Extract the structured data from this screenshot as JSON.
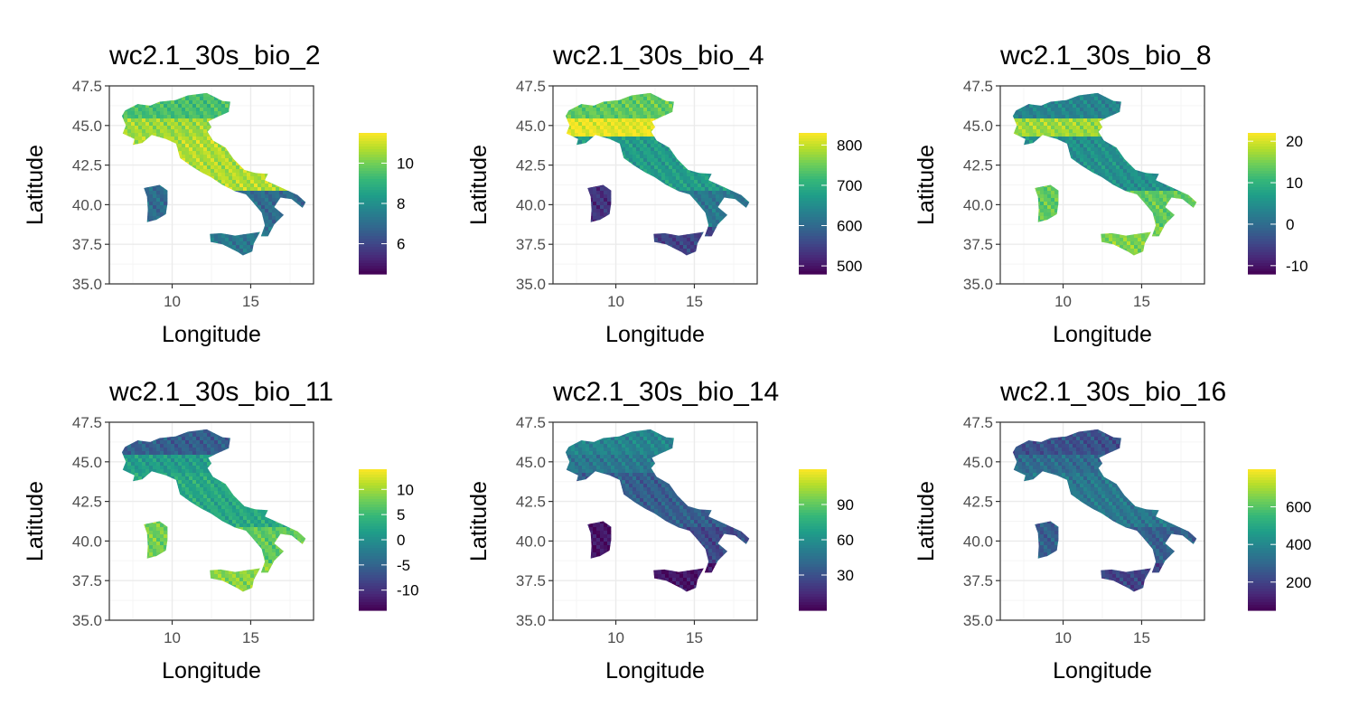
{
  "palette": {
    "viridis": [
      "#440154",
      "#482878",
      "#3e4989",
      "#31688e",
      "#26828e",
      "#1f9e89",
      "#35b779",
      "#6ece58",
      "#b5de2b",
      "#fde725"
    ],
    "grid_major": "#ebebeb",
    "grid_minor": "#f5f5f5",
    "panel_border": "#333333",
    "tick_text": "#4d4d4d"
  },
  "chart_data": [
    {
      "type": "heatmap",
      "title": "wc2.1_30s_bio_2",
      "xlabel": "Longitude",
      "ylabel": "Latitude",
      "xlim": [
        6.0,
        19.0
      ],
      "ylim": [
        35.0,
        47.5
      ],
      "x_ticks": [
        "10",
        "15"
      ],
      "y_ticks": [
        "35.0",
        "37.5",
        "40.0",
        "42.5",
        "45.0",
        "47.5"
      ],
      "grid": true,
      "legend": {
        "position": "right",
        "min": 4.5,
        "max": 11.5,
        "ticks": [
          "6",
          "8",
          "10"
        ],
        "tick_values": [
          6,
          8,
          10
        ]
      },
      "color_pattern": {
        "north": 0.7,
        "po_valley": 0.85,
        "apennines": 0.88,
        "south": 0.35,
        "sicily": 0.4,
        "sardinia": 0.35
      }
    },
    {
      "type": "heatmap",
      "title": "wc2.1_30s_bio_4",
      "xlabel": "Longitude",
      "ylabel": "Latitude",
      "xlim": [
        6.0,
        19.0
      ],
      "ylim": [
        35.0,
        47.5
      ],
      "x_ticks": [
        "10",
        "15"
      ],
      "y_ticks": [
        "35.0",
        "37.5",
        "40.0",
        "42.5",
        "45.0",
        "47.5"
      ],
      "grid": true,
      "legend": {
        "position": "right",
        "min": 480,
        "max": 830,
        "ticks": [
          "800",
          "700",
          "600",
          "500"
        ],
        "tick_values": [
          800,
          700,
          600,
          500
        ]
      },
      "color_pattern": {
        "north": 0.75,
        "po_valley": 0.97,
        "apennines": 0.55,
        "south": 0.4,
        "sicily": 0.2,
        "sardinia": 0.15
      }
    },
    {
      "type": "heatmap",
      "title": "wc2.1_30s_bio_8",
      "xlabel": "Longitude",
      "ylabel": "Latitude",
      "xlim": [
        6.0,
        19.0
      ],
      "ylim": [
        35.0,
        47.5
      ],
      "x_ticks": [
        "10",
        "15"
      ],
      "y_ticks": [
        "35.0",
        "37.5",
        "40.0",
        "42.5",
        "45.0",
        "47.5"
      ],
      "grid": true,
      "legend": {
        "position": "right",
        "min": -12,
        "max": 22,
        "ticks": [
          "20",
          "10",
          "0",
          "-10"
        ],
        "tick_values": [
          20,
          10,
          0,
          -10
        ]
      },
      "color_pattern": {
        "north": 0.45,
        "po_valley": 0.85,
        "apennines": 0.5,
        "south": 0.75,
        "sicily": 0.8,
        "sardinia": 0.75
      }
    },
    {
      "type": "heatmap",
      "title": "wc2.1_30s_bio_11",
      "xlabel": "Longitude",
      "ylabel": "Latitude",
      "xlim": [
        6.0,
        19.0
      ],
      "ylim": [
        35.0,
        47.5
      ],
      "x_ticks": [
        "10",
        "15"
      ],
      "y_ticks": [
        "35.0",
        "37.5",
        "40.0",
        "42.5",
        "45.0",
        "47.5"
      ],
      "grid": true,
      "legend": {
        "position": "right",
        "min": -14,
        "max": 14,
        "ticks": [
          "10",
          "5",
          "0",
          "-5",
          "-10"
        ],
        "tick_values": [
          10,
          5,
          0,
          -5,
          -10
        ]
      },
      "color_pattern": {
        "north": 0.3,
        "po_valley": 0.55,
        "apennines": 0.6,
        "south": 0.75,
        "sicily": 0.82,
        "sardinia": 0.78
      }
    },
    {
      "type": "heatmap",
      "title": "wc2.1_30s_bio_14",
      "xlabel": "Longitude",
      "ylabel": "Latitude",
      "xlim": [
        6.0,
        19.0
      ],
      "ylim": [
        35.0,
        47.5
      ],
      "x_ticks": [
        "10",
        "15"
      ],
      "y_ticks": [
        "35.0",
        "37.5",
        "40.0",
        "42.5",
        "45.0",
        "47.5"
      ],
      "grid": true,
      "legend": {
        "position": "right",
        "min": 0,
        "max": 120,
        "ticks": [
          "90",
          "60",
          "30"
        ],
        "tick_values": [
          90,
          60,
          30
        ]
      },
      "color_pattern": {
        "north": 0.45,
        "po_valley": 0.4,
        "apennines": 0.3,
        "south": 0.22,
        "sicily": 0.05,
        "sardinia": 0.05
      }
    },
    {
      "type": "heatmap",
      "title": "wc2.1_30s_bio_16",
      "xlabel": "Longitude",
      "ylabel": "Latitude",
      "xlim": [
        6.0,
        19.0
      ],
      "ylim": [
        35.0,
        47.5
      ],
      "x_ticks": [
        "10",
        "15"
      ],
      "y_ticks": [
        "35.0",
        "37.5",
        "40.0",
        "42.5",
        "45.0",
        "47.5"
      ],
      "grid": true,
      "legend": {
        "position": "right",
        "min": 50,
        "max": 800,
        "ticks": [
          "600",
          "400",
          "200"
        ],
        "tick_values": [
          600,
          400,
          200
        ]
      },
      "color_pattern": {
        "north": 0.25,
        "po_valley": 0.35,
        "apennines": 0.4,
        "south": 0.3,
        "sicily": 0.2,
        "sardinia": 0.3
      }
    }
  ]
}
